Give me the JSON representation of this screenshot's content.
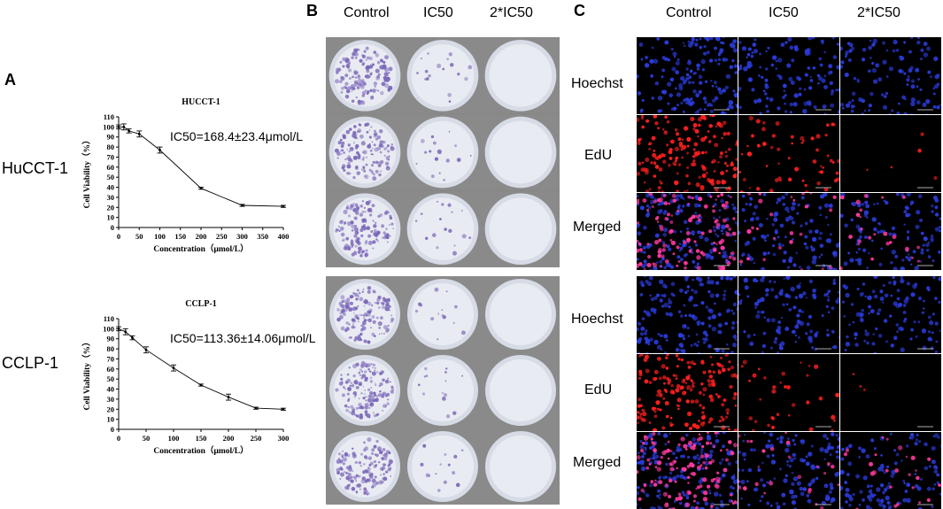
{
  "panels": {
    "a": "A",
    "b": "B",
    "c": "C"
  },
  "charts": [
    {
      "row_label": "HuCCT-1",
      "chart_data": {
        "type": "line",
        "title": "HUCCT-1",
        "annotation": "IC50=168.4±23.4μmol/L",
        "xlabel": "Concentration（μmol/L）",
        "ylabel": "Cell Viability（%）",
        "xlim": [
          0,
          400
        ],
        "ylim": [
          0,
          110
        ],
        "xticks": [
          0,
          50,
          100,
          150,
          200,
          250,
          300,
          350,
          400
        ],
        "yticks": [
          0,
          10,
          20,
          30,
          40,
          50,
          60,
          70,
          80,
          90,
          100,
          110
        ],
        "x": [
          0,
          12.5,
          25,
          50,
          100,
          200,
          300,
          400
        ],
        "y": [
          100,
          100,
          96,
          93,
          77,
          39,
          22,
          21
        ],
        "err": [
          2,
          3,
          2,
          3,
          3,
          1,
          1,
          1
        ]
      }
    },
    {
      "row_label": "CCLP-1",
      "chart_data": {
        "type": "line",
        "title": "CCLP-1",
        "annotation": "IC50=113.36±14.06μmol/L",
        "xlabel": "Concentration（μmol/L）",
        "ylabel": "Cell Viability（%）",
        "xlim": [
          0,
          300
        ],
        "ylim": [
          0,
          110
        ],
        "xticks": [
          0,
          50,
          100,
          150,
          200,
          250,
          300
        ],
        "yticks": [
          0,
          10,
          20,
          30,
          40,
          50,
          60,
          70,
          80,
          90,
          100,
          110
        ],
        "x": [
          0,
          12.5,
          25,
          50,
          100,
          150,
          200,
          250,
          300
        ],
        "y": [
          100,
          97,
          91,
          79,
          61,
          44,
          32,
          21,
          20
        ],
        "err": [
          2,
          3,
          2,
          3,
          3,
          1,
          3,
          1,
          1
        ]
      }
    }
  ],
  "colony": {
    "columns": [
      "Control",
      "IC50",
      "2*IC50"
    ],
    "plate_colors": {
      "well_rim": "#d6dbe6",
      "well_fill": "#e9ebf2",
      "colony": "#7a66b8"
    },
    "density": [
      [
        1,
        0.12,
        0.0
      ],
      [
        1,
        0.12,
        0.0
      ],
      [
        1,
        0.12,
        0.0
      ],
      [
        1,
        0.1,
        0.0
      ],
      [
        1,
        0.1,
        0.0
      ],
      [
        1,
        0.1,
        0.0
      ]
    ]
  },
  "edu": {
    "columns": [
      "Control",
      "IC50",
      "2*IC50"
    ],
    "rows": [
      "Hoechst",
      "EdU",
      "Merged",
      "Hoechst",
      "EdU",
      "Merged"
    ],
    "colors": {
      "hoechst": "#2a3bd8",
      "edu": "#ff2020",
      "merged": "#ff3aa0"
    },
    "density": [
      [
        1,
        0.75,
        0.7
      ],
      [
        1,
        0.35,
        0.03
      ],
      [
        1,
        0.75,
        0.7
      ],
      [
        1,
        0.75,
        0.7
      ],
      [
        1,
        0.2,
        0.02
      ],
      [
        1,
        0.75,
        0.7
      ]
    ]
  }
}
